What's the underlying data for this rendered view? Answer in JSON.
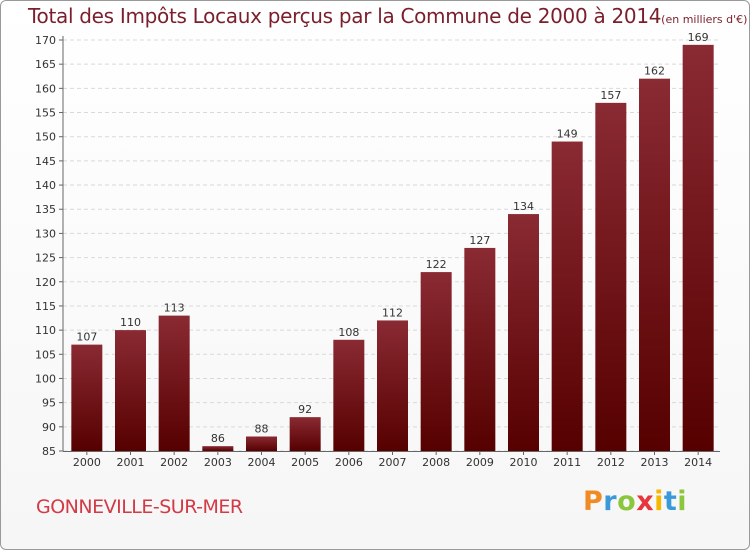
{
  "header": {
    "title": "Total des Impôts Locaux perçus par la Commune de 2000 à 2014",
    "unit": "(en milliers d'€)"
  },
  "footer": {
    "commune": "GONNEVILLE-SUR-MER",
    "logo": [
      "P",
      "r",
      "o",
      "x",
      "i",
      "t",
      "i"
    ]
  },
  "colors": {
    "bar_top": "#8a2a33",
    "bar_bottom": "#560000",
    "logo": [
      "#f08a24",
      "#3a9ad9",
      "#8cc63f",
      "#e8363d",
      "#f5b700",
      "#3a9ad9",
      "#8cc63f"
    ]
  },
  "chart_data": {
    "type": "bar",
    "title": "Total des Impôts Locaux perçus par la Commune de 2000 à 2014",
    "subtitle": "(en milliers d'€)",
    "categories": [
      "2000",
      "2001",
      "2002",
      "2003",
      "2004",
      "2005",
      "2006",
      "2007",
      "2008",
      "2009",
      "2010",
      "2011",
      "2012",
      "2013",
      "2014"
    ],
    "values": [
      107,
      110,
      113,
      86,
      88,
      92,
      108,
      112,
      122,
      127,
      134,
      149,
      157,
      162,
      169
    ],
    "xlabel": "",
    "ylabel": "",
    "ylim": [
      85,
      170
    ],
    "yticks": [
      85,
      90,
      95,
      100,
      105,
      110,
      115,
      120,
      125,
      130,
      135,
      140,
      145,
      150,
      155,
      160,
      165,
      170
    ],
    "grid": true
  }
}
